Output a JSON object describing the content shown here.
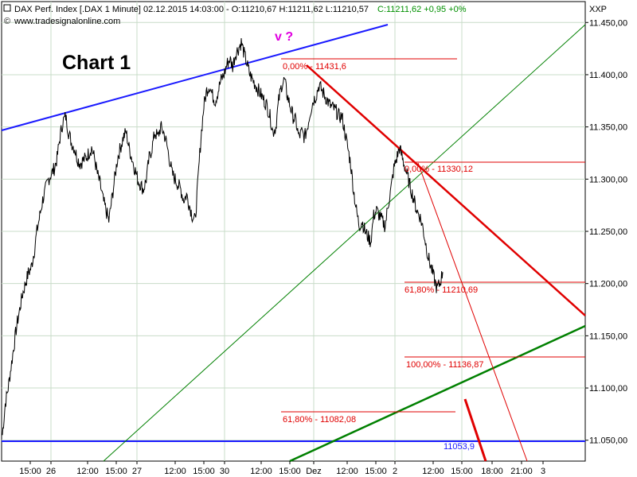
{
  "header": {
    "instrument": "DAX Perf. Index [.DAX  1 Minute] 02.12.2015 14:03:00 - O:11210,67 H:11211,62 L:11210,57",
    "close_change": "C:11211,62 +0,95 +0%",
    "source": "www.tradesignalonline.com"
  },
  "chart_label": "Chart 1",
  "annotation": "v ?",
  "axis_unit_label": "XXP",
  "chart_data": {
    "type": "line",
    "title": "Chart 1",
    "ylim": [
      11030,
      11470
    ],
    "y_ticks": [
      11050,
      11100,
      11150,
      11200,
      11250,
      11300,
      11350,
      11400,
      11450
    ],
    "y_tick_labels": [
      "11.050,00",
      "11.100,00",
      "11.150,00",
      "11.200,00",
      "11.250,00",
      "11.300,00",
      "11.350,00",
      "11.400,00",
      "11.450,00"
    ],
    "x_tick_labels": [
      "15:00",
      "26",
      "12:00",
      "15:00",
      "27",
      "12:00",
      "15:00",
      "30",
      "12:00",
      "15:00",
      "Dez",
      "12:00",
      "15:00",
      "2",
      "12:00",
      "15:00",
      "18:00",
      "21:00",
      "3"
    ],
    "grid": true,
    "series": [
      {
        "values": [
          11055,
          11085,
          11100,
          11120,
          11140,
          11160,
          11175,
          11190,
          11200,
          11210,
          11215,
          11230,
          11250,
          11265,
          11280,
          11290,
          11300,
          11305,
          11310,
          11320,
          11340,
          11355,
          11360,
          11345,
          11335,
          11330,
          11320,
          11315,
          11318,
          11320,
          11325,
          11330,
          11320,
          11305,
          11295,
          11280,
          11270,
          11260,
          11280,
          11300,
          11320,
          11330,
          11340,
          11345,
          11330,
          11320,
          11310,
          11300,
          11295,
          11290,
          11300,
          11320,
          11330,
          11345,
          11340,
          11350,
          11345,
          11335,
          11320,
          11305,
          11300,
          11295,
          11290,
          11280,
          11285,
          11275,
          11265,
          11260,
          11300,
          11340,
          11370,
          11385,
          11390,
          11380,
          11375,
          11385,
          11395,
          11400,
          11410,
          11415,
          11408,
          11420,
          11425,
          11431,
          11420,
          11410,
          11400,
          11395,
          11390,
          11385,
          11380,
          11375,
          11370,
          11360,
          11345,
          11350,
          11375,
          11390,
          11395,
          11380,
          11370,
          11360,
          11355,
          11340,
          11345,
          11340,
          11350,
          11365,
          11375,
          11380,
          11390,
          11385,
          11380,
          11375,
          11370,
          11368,
          11365,
          11360,
          11360,
          11345,
          11330,
          11315,
          11290,
          11270,
          11255,
          11260,
          11250,
          11245,
          11240,
          11265,
          11270,
          11265,
          11260,
          11255,
          11275,
          11290,
          11310,
          11320,
          11330,
          11320,
          11310,
          11300,
          11290,
          11280,
          11270,
          11265,
          11255,
          11240,
          11225,
          11215,
          11205,
          11195,
          11200,
          11211
        ]
      }
    ],
    "levels": [
      {
        "label": "0,00% - 11431,6",
        "value": 11431.6
      },
      {
        "label": "0,00% - 11330,12",
        "value": 11330.12
      },
      {
        "label": "61,80% - 11210,69",
        "value": 11210.69
      },
      {
        "label": "100,00% - 11136,87",
        "value": 11136.87
      },
      {
        "label": "61,80% - 11082,08",
        "value": 11082.08
      },
      {
        "label": "11053,9",
        "value": 11053.9
      }
    ]
  },
  "colors": {
    "price": "#000000",
    "resistance": "#1a1aff",
    "downtrend": "#e00000",
    "support": "#008000",
    "grid": "#c8dcc8"
  }
}
